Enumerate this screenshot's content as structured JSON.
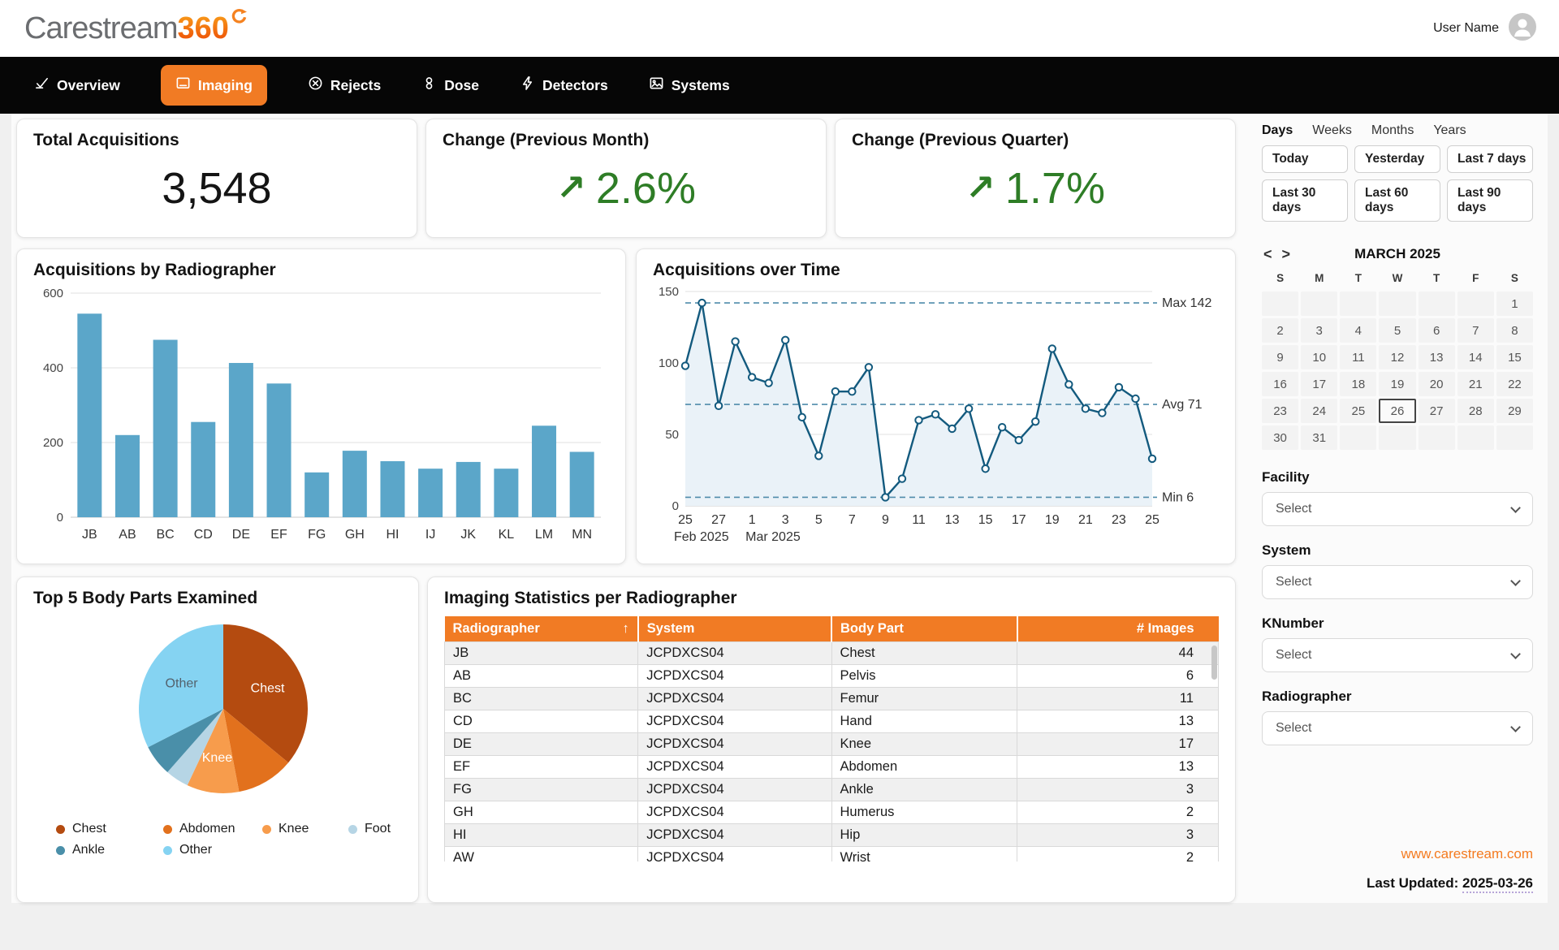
{
  "header": {
    "logo_main": "Carestream",
    "logo_suffix": "360",
    "logo_icon": "circular-arrow-icon",
    "user_name": "User Name"
  },
  "nav": {
    "items": [
      {
        "label": "Overview",
        "icon": "overview-check-icon",
        "active": false
      },
      {
        "label": "Imaging",
        "icon": "imaging-monitor-icon",
        "active": true
      },
      {
        "label": "Rejects",
        "icon": "rejects-circle-x-icon",
        "active": false
      },
      {
        "label": "Dose",
        "icon": "dose-capsule-icon",
        "active": false
      },
      {
        "label": "Detectors",
        "icon": "detectors-bolt-icon",
        "active": false
      },
      {
        "label": "Systems",
        "icon": "systems-image-icon",
        "active": false
      }
    ]
  },
  "kpis": [
    {
      "title": "Total Acquisitions",
      "value": "3,548",
      "trend": "none"
    },
    {
      "title": "Change (Previous Month)",
      "value": "2.6%",
      "trend": "up"
    },
    {
      "title": "Change (Previous Quarter)",
      "value": "1.7%",
      "trend": "up"
    }
  ],
  "chart_data": [
    {
      "type": "bar",
      "title": "Acquisitions by Radiographer",
      "categories": [
        "JB",
        "AB",
        "BC",
        "CD",
        "DE",
        "EF",
        "FG",
        "GH",
        "HI",
        "IJ",
        "JK",
        "KL",
        "LM",
        "MN"
      ],
      "values": [
        545,
        220,
        475,
        255,
        413,
        358,
        120,
        178,
        150,
        130,
        148,
        130,
        245,
        175
      ],
      "ylim": [
        0,
        600
      ],
      "yticks": [
        0,
        200,
        400,
        600
      ],
      "bar_color": "#5ba6c9"
    },
    {
      "type": "line",
      "title": "Acquisitions over Time",
      "values": [
        98,
        142,
        70,
        115,
        90,
        86,
        116,
        62,
        35,
        80,
        80,
        97,
        6,
        19,
        60,
        64,
        54,
        68,
        26,
        55,
        46,
        59,
        110,
        85,
        68,
        65,
        83,
        75,
        33
      ],
      "ylim": [
        0,
        150
      ],
      "yticks": [
        0,
        50,
        100,
        150
      ],
      "x_ticks": [
        {
          "index": 0,
          "label": "25",
          "sub": "Feb 2025"
        },
        {
          "index": 2,
          "label": "27"
        },
        {
          "index": 4,
          "label": "1",
          "sub": "Mar 2025"
        },
        {
          "index": 6,
          "label": "3"
        },
        {
          "index": 8,
          "label": "5"
        },
        {
          "index": 10,
          "label": "7"
        },
        {
          "index": 12,
          "label": "9"
        },
        {
          "index": 14,
          "label": "11"
        },
        {
          "index": 16,
          "label": "13"
        },
        {
          "index": 18,
          "label": "15"
        },
        {
          "index": 20,
          "label": "17"
        },
        {
          "index": 22,
          "label": "19"
        },
        {
          "index": 24,
          "label": "21"
        },
        {
          "index": 26,
          "label": "23"
        },
        {
          "index": 28,
          "label": "25"
        }
      ],
      "ref_lines": [
        {
          "label": "Max 142",
          "value": 142
        },
        {
          "label": "Avg 71",
          "value": 71
        },
        {
          "label": "Min 6",
          "value": 6
        }
      ],
      "line_color": "#135a7e",
      "ref_color": "#4f8cab",
      "area_color": "#eaf2f8"
    },
    {
      "type": "pie",
      "title": "Top 5 Body Parts Examined",
      "slices": [
        {
          "label": "Chest",
          "value": 36,
          "color": "#b44b10",
          "show_label": true,
          "label_color": "#ffffff"
        },
        {
          "label": "Abdomen",
          "value": 11,
          "color": "#e2711d",
          "show_label": false,
          "label_color": "#ffffff"
        },
        {
          "label": "Knee",
          "value": 10,
          "color": "#f79c4c",
          "show_label": true,
          "label_color": "#ffffff"
        },
        {
          "label": "Foot",
          "value": 4.5,
          "color": "#b6d5e5",
          "show_label": false,
          "label_color": "#53616c"
        },
        {
          "label": "Ankle",
          "value": 6,
          "color": "#4a8fa9",
          "show_label": false,
          "label_color": "#ffffff"
        },
        {
          "label": "Other",
          "value": 32.5,
          "color": "#85d3f2",
          "show_label": true,
          "label_color": "#53616c"
        }
      ]
    }
  ],
  "table": {
    "title": "Imaging Statistics per Radiographer",
    "columns": [
      {
        "label": "Radiographer",
        "sort": "asc"
      },
      {
        "label": "System"
      },
      {
        "label": "Body Part"
      },
      {
        "label": "# Images"
      }
    ],
    "rows": [
      [
        "JB",
        "JCPDXCS04",
        "Chest",
        "44"
      ],
      [
        "AB",
        "JCPDXCS04",
        "Pelvis",
        "6"
      ],
      [
        "BC",
        "JCPDXCS04",
        "Femur",
        "11"
      ],
      [
        "CD",
        "JCPDXCS04",
        "Hand",
        "13"
      ],
      [
        "DE",
        "JCPDXCS04",
        "Knee",
        "17"
      ],
      [
        "EF",
        "JCPDXCS04",
        "Abdomen",
        "13"
      ],
      [
        "FG",
        "JCPDXCS04",
        "Ankle",
        "3"
      ],
      [
        "GH",
        "JCPDXCS04",
        "Humerus",
        "2"
      ],
      [
        "HI",
        "JCPDXCS04",
        "Hip",
        "3"
      ],
      [
        "AW",
        "JCPDXCS04",
        "Wrist",
        "2"
      ]
    ]
  },
  "sidebar": {
    "period_tabs": [
      {
        "label": "Days",
        "active": true
      },
      {
        "label": "Weeks",
        "active": false
      },
      {
        "label": "Months",
        "active": false
      },
      {
        "label": "Years",
        "active": false
      }
    ],
    "quick_ranges": [
      "Today",
      "Yesterday",
      "Last 7 days",
      "Last 30 days",
      "Last 60 days",
      "Last 90 days"
    ],
    "calendar": {
      "title": "MARCH 2025",
      "day_headers": [
        "S",
        "M",
        "T",
        "W",
        "T",
        "F",
        "S"
      ],
      "weeks": [
        [
          "",
          "",
          "",
          "",
          "",
          "",
          "1"
        ],
        [
          "2",
          "3",
          "4",
          "5",
          "6",
          "7",
          "8"
        ],
        [
          "9",
          "10",
          "11",
          "12",
          "13",
          "14",
          "15"
        ],
        [
          "16",
          "17",
          "18",
          "19",
          "20",
          "21",
          "22"
        ],
        [
          "23",
          "24",
          "25",
          "26",
          "27",
          "28",
          "29"
        ],
        [
          "30",
          "31",
          "",
          "",
          "",
          "",
          ""
        ]
      ],
      "selected_day": "26"
    },
    "filters": [
      {
        "label": "Facility",
        "value": "Select"
      },
      {
        "label": "System",
        "value": "Select"
      },
      {
        "label": "KNumber",
        "value": "Select"
      },
      {
        "label": "Radiographer",
        "value": "Select"
      }
    ],
    "website": "www.carestream.com",
    "last_updated_label": "Last Updated:",
    "last_updated_value": "2025-03-26"
  },
  "colors": {
    "accent_orange": "#f17b24",
    "positive_green": "#2e7d26",
    "bar_blue": "#5ba6c9",
    "line_teal": "#135a7e",
    "nav_black": "#060606"
  }
}
